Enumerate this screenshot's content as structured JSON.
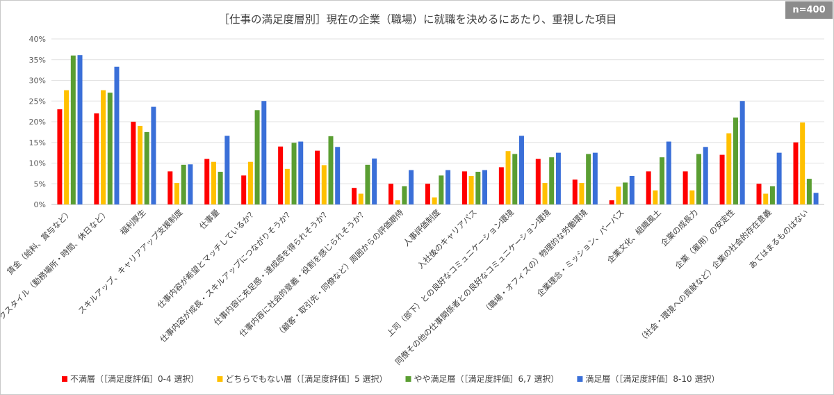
{
  "chart_data": {
    "type": "bar",
    "title": "［仕事の満足度層別］現在の企業（職場）に就職を決めるにあたり、重視した項目",
    "sample_size_label": "n=400",
    "y_axis": {
      "min": 0,
      "max": 40,
      "step": 5,
      "unit": "%"
    },
    "grid": true,
    "legend_position": "bottom",
    "categories": [
      "賃金（給料、賞与など）",
      "ワークスタイル（勤務場所・時間、休日など）",
      "福利厚生",
      "スキルアップ、キャリアアップ支援制度",
      "仕事量",
      "仕事内容が希望とマッチしているか？",
      "仕事内容が成長・スキルアップにつながりそうか？",
      "仕事内容に充足感・達成感を得られそうか？",
      "仕事内容に社会的意義・役割を感じられそうか？",
      "（顧客・取引先・同僚など）周囲からの評価期待",
      "人事評価制度",
      "入社後のキャリアパス",
      "上司（部下）との良好なコミュニケーション環境",
      "同僚その他の仕事関係者との良好なコミュニケーション環境",
      "（職場・オフィスの）物理的な労働環境",
      "企業理念・ミッション、パーパス",
      "企業文化、組織風土",
      "企業の成長力",
      "企業（雇用）の安定性",
      "（社会・環境への貢献など）企業の社会的存在意義",
      "あてはまるものはない"
    ],
    "series": [
      {
        "name": "不満層（［満足度評価］0-4 選択）",
        "color": "#ff0000",
        "values": [
          23,
          22,
          20,
          8,
          11,
          7,
          14,
          13,
          4,
          5,
          5,
          8,
          9,
          11,
          6,
          1,
          8,
          8,
          12,
          5,
          15
        ]
      },
      {
        "name": "どちらでもない層（［満足度評価］5 選択）",
        "color": "#ffc000",
        "values": [
          27.6,
          27.6,
          19,
          5.2,
          10.3,
          10.3,
          8.6,
          9.5,
          2.6,
          1,
          1.7,
          6.9,
          12.9,
          5.2,
          5.2,
          4.3,
          3.4,
          3.4,
          17.2,
          2.6,
          19.8
        ]
      },
      {
        "name": "やや満足層（［満足度評価］6,7 選択）",
        "color": "#5a9e32",
        "values": [
          36,
          27,
          17.5,
          9.6,
          7.9,
          22.8,
          14.9,
          16.5,
          9.6,
          4.4,
          7,
          7.9,
          12.2,
          11.4,
          12.2,
          5.3,
          11.4,
          12.2,
          21,
          4.4,
          6.2
        ]
      },
      {
        "name": "満足層（［満足度評価］8-10 選択）",
        "color": "#3a6fd8",
        "values": [
          36.1,
          33.3,
          23.6,
          9.7,
          16.6,
          25,
          15.2,
          13.9,
          11.1,
          8.3,
          8.3,
          8.3,
          16.6,
          12.5,
          12.5,
          6.9,
          15.2,
          13.9,
          25,
          12.5,
          2.8
        ]
      }
    ]
  }
}
